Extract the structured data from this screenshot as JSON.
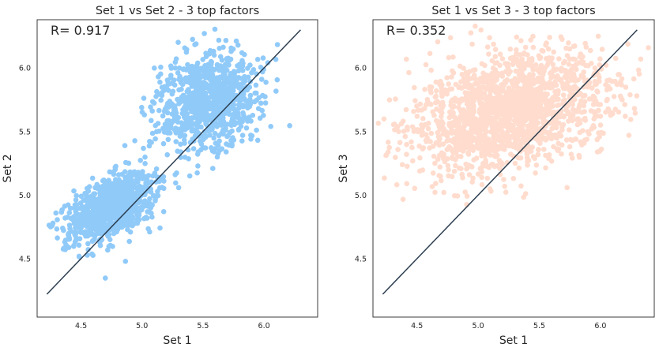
{
  "chart_data": [
    {
      "type": "scatter",
      "title": "Set 1 vs Set 2 - 3 top factors",
      "xlabel": "Set 1",
      "ylabel": "Set 2",
      "annotation": "R= 0.917",
      "xlim": [
        4.14,
        6.44
      ],
      "ylim": [
        4.04,
        6.38
      ],
      "xticks": [
        "4.5",
        "5.0",
        "5.5",
        "6.0"
      ],
      "yticks": [
        "4.5",
        "5.0",
        "5.5",
        "6.0"
      ],
      "point_color": "#90caf9",
      "line_color": "#2c3e50",
      "reference_line": {
        "x": [
          4.22,
          6.3
        ],
        "y": [
          4.22,
          6.3
        ]
      },
      "clusters": [
        {
          "center": [
            4.75,
            4.9
          ],
          "std": [
            0.2,
            0.11
          ],
          "rotation": 0.5,
          "count": 900
        },
        {
          "center": [
            5.55,
            5.75
          ],
          "std": [
            0.22,
            0.18
          ],
          "rotation": 0.55,
          "count": 900
        }
      ],
      "grid": false
    },
    {
      "type": "scatter",
      "title": "Set 1 vs Set 3 - 3 top factors",
      "xlabel": "Set 1",
      "ylabel": "Set 3",
      "annotation": "R= 0.352",
      "xlim": [
        4.14,
        6.44
      ],
      "ylim": [
        4.04,
        6.38
      ],
      "xticks": [
        "4.5",
        "5.0",
        "5.5",
        "6.0"
      ],
      "yticks": [
        "4.5",
        "5.0",
        "5.5",
        "6.0"
      ],
      "point_color": "#ffdccd",
      "line_color": "#2c3e50",
      "reference_line": {
        "x": [
          4.22,
          6.3
        ],
        "y": [
          4.22,
          6.3
        ]
      },
      "clusters": [
        {
          "center": [
            5.25,
            5.65
          ],
          "std": [
            0.42,
            0.22
          ],
          "rotation": 0.25,
          "count": 1800
        }
      ],
      "grid": false
    }
  ]
}
